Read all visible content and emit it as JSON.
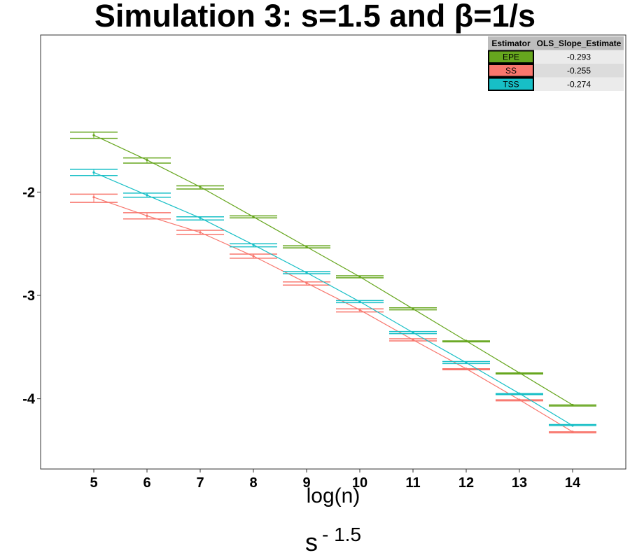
{
  "chart_data": {
    "type": "line",
    "title": "Simulation 3: s=1.5 and β=1/s",
    "xlabel": "log(n)",
    "caption_base": "s",
    "caption_exponent": "- 1.5",
    "x": [
      5,
      6,
      7,
      8,
      9,
      10,
      11,
      12,
      13,
      14
    ],
    "x_tick_labels": [
      "5",
      "6",
      "7",
      "8",
      "9",
      "10",
      "11",
      "12",
      "13",
      "14"
    ],
    "y_ticks": [
      -2,
      -3,
      -4
    ],
    "y_tick_labels": [
      "-2",
      "-3",
      "-4"
    ],
    "xlim": [
      4,
      15
    ],
    "ylim": [
      -4.68,
      -0.48
    ],
    "grid": false,
    "legend_placement": "top-right",
    "series": [
      {
        "name": "EPE",
        "color": "#66a61e",
        "values": [
          -1.45,
          -1.69,
          -1.95,
          -2.24,
          -2.53,
          -2.82,
          -3.13,
          -3.44,
          -3.75,
          -4.06
        ],
        "err_low": [
          -1.48,
          -1.72,
          -1.97,
          -2.25,
          -2.54,
          -2.83,
          -3.14,
          -3.45,
          -3.76,
          -4.07
        ],
        "err_high": [
          -1.42,
          -1.67,
          -1.94,
          -2.23,
          -2.52,
          -2.81,
          -3.12,
          -3.44,
          -3.75,
          -4.06
        ]
      },
      {
        "name": "SS",
        "color": "#f8766d",
        "values": [
          -2.05,
          -2.23,
          -2.39,
          -2.62,
          -2.88,
          -3.14,
          -3.43,
          -3.71,
          -4.01,
          -4.32
        ],
        "err_low": [
          -2.1,
          -2.26,
          -2.41,
          -2.64,
          -2.9,
          -3.16,
          -3.44,
          -3.72,
          -4.02,
          -4.33
        ],
        "err_high": [
          -2.02,
          -2.2,
          -2.37,
          -2.6,
          -2.87,
          -3.13,
          -3.42,
          -3.71,
          -4.01,
          -4.32
        ]
      },
      {
        "name": "TSS",
        "color": "#17bfc6",
        "values": [
          -1.81,
          -2.03,
          -2.25,
          -2.51,
          -2.78,
          -3.06,
          -3.36,
          -3.65,
          -3.95,
          -4.26
        ],
        "err_low": [
          -1.84,
          -2.05,
          -2.27,
          -2.53,
          -2.79,
          -3.07,
          -3.37,
          -3.66,
          -3.96,
          -4.26
        ],
        "err_high": [
          -1.78,
          -2.01,
          -2.24,
          -2.5,
          -2.77,
          -3.05,
          -3.35,
          -3.64,
          -3.95,
          -4.25
        ]
      }
    ],
    "table": {
      "headers": [
        "Estimator",
        "OLS_Slope_Estimate"
      ],
      "rows": [
        {
          "estimator": "EPE",
          "slope": "-0.293"
        },
        {
          "estimator": "SS",
          "slope": "-0.255"
        },
        {
          "estimator": "TSS",
          "slope": "-0.274"
        }
      ]
    }
  }
}
